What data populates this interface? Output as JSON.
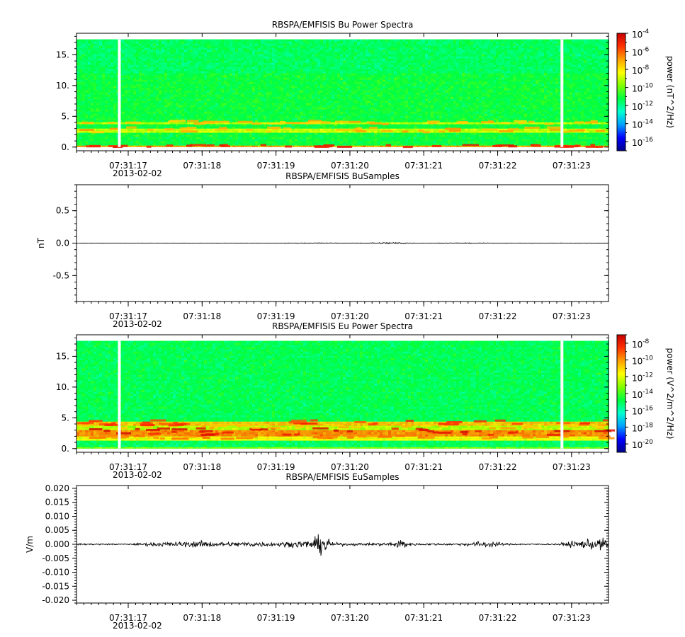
{
  "colors": {
    "background": "#ffffff",
    "axis": "#000000",
    "gap": "#ffffff",
    "trace": "#000000",
    "colormap": [
      "#00008b",
      "#0000ff",
      "#00a0ff",
      "#00ffd0",
      "#00ff40",
      "#80ff00",
      "#ffff00",
      "#ffa000",
      "#ff3000",
      "#c80000"
    ]
  },
  "chart_data": [
    {
      "type": "heatmap",
      "title": "RBSPA/EMFISIS  Bu Power Spectra",
      "xlabel": "",
      "ylabel": "",
      "xlim": [
        "07:31:16.3",
        "07:31:23.5"
      ],
      "ylim": [
        -0.6,
        18.5
      ],
      "x_ticks": [
        "07:31:17",
        "07:31:18",
        "07:31:19",
        "07:31:20",
        "07:31:21",
        "07:31:22",
        "07:31:23"
      ],
      "x_tick_seconds": [
        17,
        18,
        19,
        20,
        21,
        22,
        23
      ],
      "date_label": "2013-02-02",
      "y_ticks": [
        0,
        5,
        10,
        15
      ],
      "y_tick_labels": [
        "0.",
        "5.",
        "10.",
        "15."
      ],
      "y_minor_step": 1,
      "data_ylim": [
        0,
        17.5
      ],
      "gaps_seconds": [
        16.88,
        22.87
      ],
      "bands": [
        {
          "y0": 0,
          "y1": 0.35,
          "level": 0.78
        },
        {
          "y0": 2.4,
          "y1": 3.2,
          "level": 0.62
        },
        {
          "y0": 3.7,
          "y1": 4.3,
          "level": 0.6
        },
        {
          "y0": 12,
          "y1": 17.5,
          "level": 0.42
        }
      ],
      "background_level": 0.45,
      "colorbar": {
        "label": "power (nT^2/Hz)",
        "min_exp": -17,
        "max_exp": -4,
        "ticks": [
          {
            "exp": -4,
            "label": "-4"
          },
          {
            "exp": -6,
            "label": "-6"
          },
          {
            "exp": -8,
            "label": "-8"
          },
          {
            "exp": -10,
            "label": "-10"
          },
          {
            "exp": -12,
            "label": "-12"
          },
          {
            "exp": -14,
            "label": "-14"
          },
          {
            "exp": -16,
            "label": "-16"
          }
        ]
      }
    },
    {
      "type": "line",
      "title": "RBSPA/EMFISIS  BuSamples",
      "xlabel": "",
      "ylabel": "nT",
      "xlim": [
        "07:31:16.3",
        "07:31:23.5"
      ],
      "ylim": [
        -0.9,
        0.9
      ],
      "x_ticks": [
        "07:31:17",
        "07:31:18",
        "07:31:19",
        "07:31:20",
        "07:31:21",
        "07:31:22",
        "07:31:23"
      ],
      "x_tick_seconds": [
        17,
        18,
        19,
        20,
        21,
        22,
        23
      ],
      "date_label": "2013-02-02",
      "y_ticks": [
        0.5,
        0,
        -0.5
      ],
      "y_tick_labels": [
        "0.5",
        "0.0",
        "-0.5"
      ],
      "y_minor_step": 0.1,
      "series": [
        {
          "x_seconds": [
            16.3,
            17.0,
            18.0,
            19.0,
            19.65,
            20.0,
            20.7,
            20.8,
            21.0,
            21.4,
            22.0,
            23.0,
            23.5
          ],
          "envelope": [
            0.003,
            0.004,
            0.004,
            0.004,
            0.012,
            0.004,
            0.03,
            0.012,
            0.004,
            0.01,
            0.005,
            0.006,
            0.008
          ]
        }
      ]
    },
    {
      "type": "heatmap",
      "title": "RBSPA/EMFISIS  Eu Power Spectra",
      "xlabel": "",
      "ylabel": "",
      "xlim": [
        "07:31:16.3",
        "07:31:23.5"
      ],
      "ylim": [
        -0.6,
        18.5
      ],
      "x_ticks": [
        "07:31:17",
        "07:31:18",
        "07:31:19",
        "07:31:20",
        "07:31:21",
        "07:31:22",
        "07:31:23"
      ],
      "x_tick_seconds": [
        17,
        18,
        19,
        20,
        21,
        22,
        23
      ],
      "date_label": "2013-02-02",
      "y_ticks": [
        0,
        5,
        10,
        15
      ],
      "y_tick_labels": [
        "0.",
        "5.",
        "10.",
        "15."
      ],
      "y_minor_step": 1,
      "data_ylim": [
        0,
        17.5
      ],
      "gaps_seconds": [
        16.88,
        22.87
      ],
      "bands": [
        {
          "y0": 0,
          "y1": 0.5,
          "level": 0.55
        },
        {
          "y0": 0.5,
          "y1": 1.6,
          "level": 0.42
        },
        {
          "y0": 1.6,
          "y1": 2.2,
          "level": 0.66
        },
        {
          "y0": 2.2,
          "y1": 3.3,
          "level": 0.8
        },
        {
          "y0": 3.3,
          "y1": 3.8,
          "level": 0.6
        },
        {
          "y0": 3.8,
          "y1": 4.6,
          "level": 0.74
        }
      ],
      "background_level": 0.43,
      "colorbar": {
        "label": "power (V^2/m^2/Hz)",
        "min_exp": -21,
        "max_exp": -7,
        "ticks": [
          {
            "exp": -8,
            "label": "-8"
          },
          {
            "exp": -10,
            "label": "-10"
          },
          {
            "exp": -12,
            "label": "-12"
          },
          {
            "exp": -14,
            "label": "-14"
          },
          {
            "exp": -16,
            "label": "-16"
          },
          {
            "exp": -18,
            "label": "-18"
          },
          {
            "exp": -20,
            "label": "-20"
          }
        ]
      }
    },
    {
      "type": "line",
      "title": "RBSPA/EMFISIS  EuSamples",
      "xlabel": "",
      "ylabel": "V/m",
      "xlim": [
        "07:31:16.3",
        "07:31:23.5"
      ],
      "ylim": [
        -0.021,
        0.021
      ],
      "x_ticks": [
        "07:31:17",
        "07:31:18",
        "07:31:19",
        "07:31:20",
        "07:31:21",
        "07:31:22",
        "07:31:23"
      ],
      "x_tick_seconds": [
        17,
        18,
        19,
        20,
        21,
        22,
        23
      ],
      "date_label": "2013-02-02",
      "y_ticks": [
        0.02,
        0.015,
        0.01,
        0.005,
        0,
        -0.005,
        -0.01,
        -0.015,
        -0.02
      ],
      "y_tick_labels": [
        "0.020",
        "0.015",
        "0.010",
        "0.005",
        "0.000",
        "-0.005",
        "-0.010",
        "-0.015",
        "-0.020"
      ],
      "y_minor_step": 0.001,
      "series": [
        {
          "x_seconds": [
            16.3,
            16.8,
            17.0,
            17.3,
            17.5,
            17.8,
            18.0,
            18.2,
            18.4,
            18.6,
            18.8,
            19.0,
            19.2,
            19.35,
            19.5,
            19.65,
            19.75,
            20.0,
            20.3,
            20.6,
            20.7,
            20.8,
            21.0,
            21.3,
            21.5,
            21.8,
            21.95,
            22.1,
            22.5,
            22.8,
            23.0,
            23.2,
            23.5
          ],
          "envelope": [
            0.0005,
            0.0004,
            0.0003,
            0.0012,
            0.0015,
            0.0018,
            0.0022,
            0.0017,
            0.0015,
            0.0018,
            0.0016,
            0.0014,
            0.0018,
            0.0025,
            0.003,
            0.0085,
            0.0012,
            0.0008,
            0.0008,
            0.0015,
            0.0045,
            0.001,
            0.0006,
            0.0007,
            0.0008,
            0.0022,
            0.0018,
            0.0006,
            0.0004,
            0.0005,
            0.002,
            0.003,
            0.0042
          ]
        }
      ]
    }
  ]
}
